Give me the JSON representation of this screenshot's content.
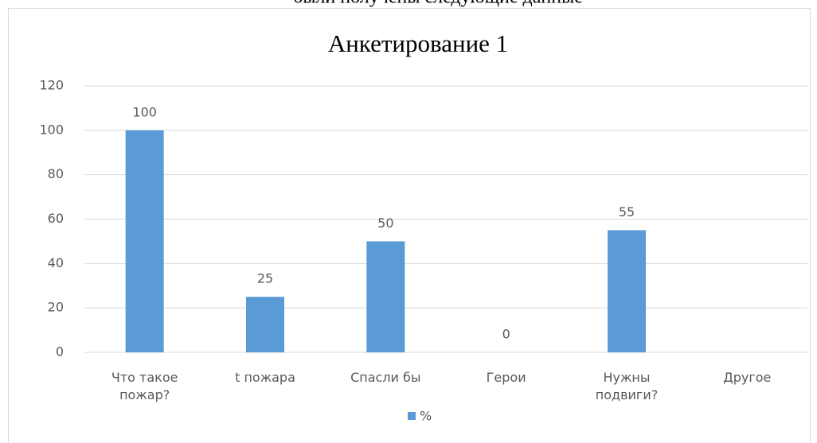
{
  "caption": "были получены следующие данные",
  "chart_data": {
    "type": "bar",
    "title": "Анкетирование 1",
    "categories": [
      "Что такое пожар?",
      "t пожара",
      "Спасли бы",
      "Герои",
      "Нужны подвиги?",
      "Другое"
    ],
    "series": [
      {
        "name": "%",
        "color": "#5b9bd5",
        "values": [
          100,
          25,
          50,
          0,
          55,
          null
        ]
      }
    ],
    "ylim": [
      0,
      120
    ],
    "yticks": [
      0,
      20,
      40,
      60,
      80,
      100,
      120
    ],
    "grid": true,
    "legend": "bottom"
  }
}
